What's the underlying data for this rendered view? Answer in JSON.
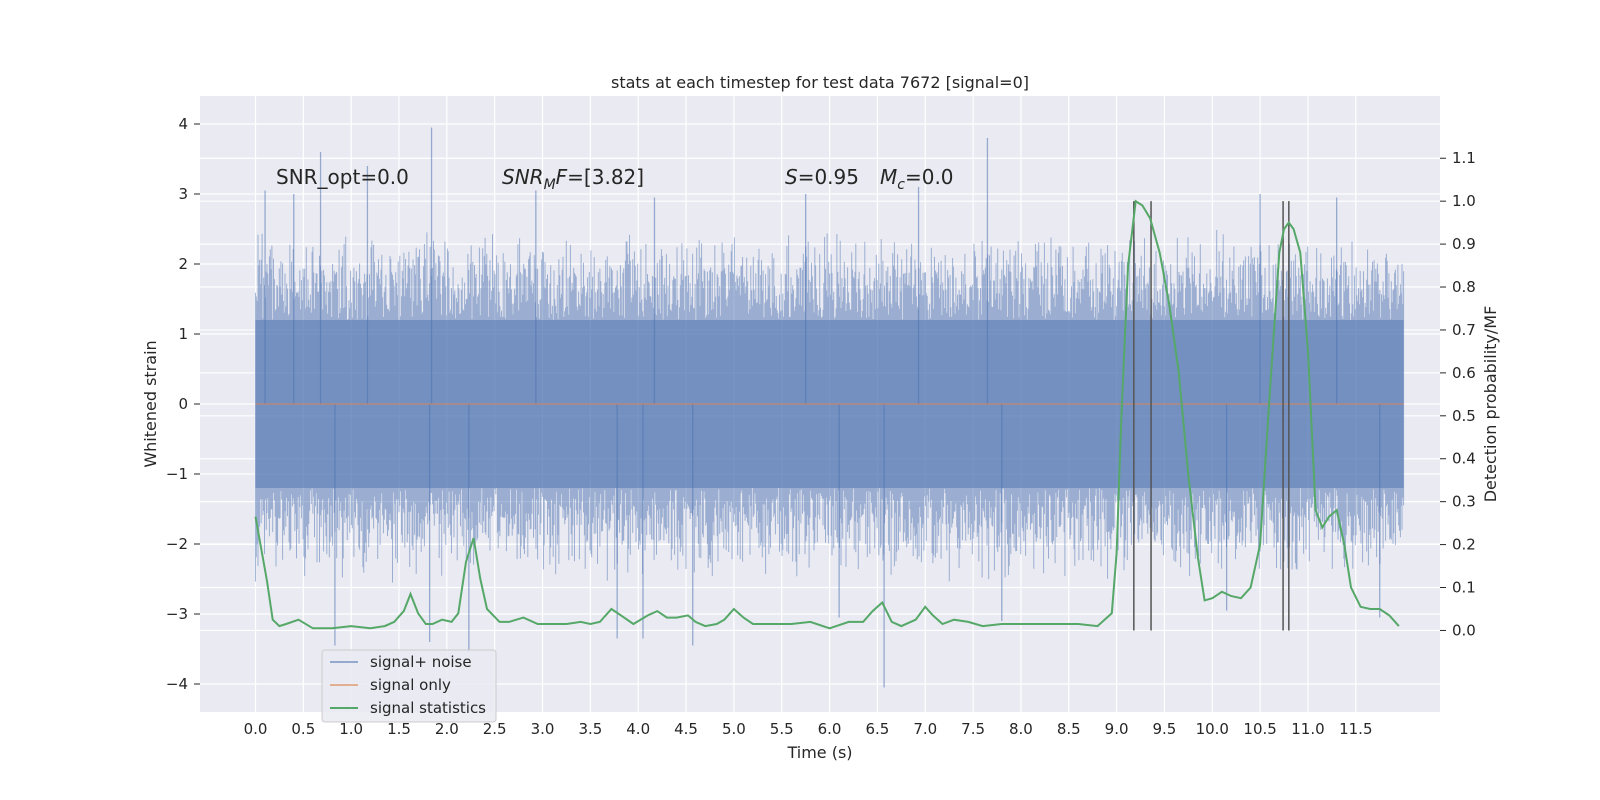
{
  "chart_data": {
    "type": "line",
    "title": "stats at each timestep for test data 7672 [signal=0]",
    "xlabel": "Time (s)",
    "ylabel": "Whitened strain",
    "y2label": "Detection probability/MF",
    "xlim": [
      -0.58,
      12.38
    ],
    "ylim": [
      -4.4,
      4.4
    ],
    "y2lim": [
      -0.19,
      1.245
    ],
    "x_ticks": [
      0.0,
      0.5,
      1.0,
      1.5,
      2.0,
      2.5,
      3.0,
      3.5,
      4.0,
      4.5,
      5.0,
      5.5,
      6.0,
      6.5,
      7.0,
      7.5,
      8.0,
      8.5,
      9.0,
      9.5,
      10.0,
      10.5,
      11.0,
      11.5
    ],
    "x_tick_labels": [
      "0.0",
      "0.5",
      "1.0",
      "1.5",
      "2.0",
      "2.5",
      "3.0",
      "3.5",
      "4.0",
      "4.5",
      "5.0",
      "5.5",
      "6.0",
      "6.5",
      "7.0",
      "7.5",
      "8.0",
      "8.5",
      "9.0",
      "9.5",
      "10.0",
      "10.5",
      "11.0",
      "11.5"
    ],
    "y_ticks": [
      4,
      3,
      2,
      1,
      0,
      -1,
      -2,
      -3,
      -4
    ],
    "y_tick_labels": [
      "4",
      "3",
      "2",
      "1",
      "0",
      "−1",
      "−2",
      "−3",
      "−4"
    ],
    "y2_ticks": [
      1.1,
      1.0,
      0.9,
      0.8,
      0.7,
      0.6,
      0.5,
      0.4,
      0.3,
      0.2,
      0.1,
      0.0
    ],
    "y2_tick_labels": [
      "1.1",
      "1.0",
      "0.9",
      "0.8",
      "0.7",
      "0.6",
      "0.5",
      "0.4",
      "0.3",
      "0.2",
      "0.1",
      "0.0"
    ],
    "grid": true,
    "legend_position": "lower-left",
    "colors": {
      "background": "#eaeaf2",
      "grid": "#ffffff",
      "noise": "#4c72b0",
      "signal_only": "#dd8452",
      "statistics": "#55a868",
      "markers": "#555555"
    },
    "annotations": {
      "snr_opt": "SNR_opt=0.0",
      "snr_mf_sym": "SNR",
      "snr_mf_sub": "M",
      "snr_mf_f": "F",
      "snr_mf_val": "=[3.82]",
      "s_sym": "S",
      "s_val": "=0.95",
      "mc_sym": "M",
      "mc_sub": "c",
      "mc_val": "=0.0"
    },
    "series": [
      {
        "name": "signal+ noise",
        "kind": "noise_envelope",
        "x_range": [
          0.0,
          12.0
        ],
        "typical_top": 1.9,
        "typical_bottom": -1.9,
        "spikes": [
          {
            "x": 0.1,
            "y": 3.05
          },
          {
            "x": 0.4,
            "y": 3.0
          },
          {
            "x": 0.68,
            "y": 3.6
          },
          {
            "x": 1.17,
            "y": 3.4
          },
          {
            "x": 1.84,
            "y": 3.95
          },
          {
            "x": 2.93,
            "y": 3.05
          },
          {
            "x": 4.17,
            "y": 2.95
          },
          {
            "x": 5.75,
            "y": 3.0
          },
          {
            "x": 6.93,
            "y": 3.1
          },
          {
            "x": 7.65,
            "y": 3.8
          },
          {
            "x": 10.5,
            "y": 3.0
          },
          {
            "x": 11.3,
            "y": 2.95
          },
          {
            "x": 0.83,
            "y": -3.45
          },
          {
            "x": 1.82,
            "y": -3.4
          },
          {
            "x": 2.23,
            "y": -3.55
          },
          {
            "x": 3.78,
            "y": -3.35
          },
          {
            "x": 4.05,
            "y": -3.35
          },
          {
            "x": 4.57,
            "y": -3.45
          },
          {
            "x": 6.57,
            "y": -4.05
          },
          {
            "x": 6.1,
            "y": -3.05
          },
          {
            "x": 7.8,
            "y": -3.1
          },
          {
            "x": 10.15,
            "y": -2.95
          },
          {
            "x": 11.75,
            "y": -3.05
          }
        ]
      },
      {
        "name": "signal only",
        "x": [
          0.0,
          12.0
        ],
        "y": [
          0.0,
          0.0
        ]
      },
      {
        "name": "signal statistics",
        "axis": "right",
        "x": [
          0.0,
          0.12,
          0.18,
          0.25,
          0.32,
          0.45,
          0.6,
          0.8,
          1.0,
          1.2,
          1.35,
          1.45,
          1.55,
          1.62,
          1.7,
          1.78,
          1.85,
          1.95,
          2.05,
          2.12,
          2.2,
          2.28,
          2.35,
          2.42,
          2.55,
          2.65,
          2.8,
          2.95,
          3.1,
          3.25,
          3.4,
          3.5,
          3.6,
          3.72,
          3.82,
          3.95,
          4.1,
          4.2,
          4.3,
          4.4,
          4.52,
          4.6,
          4.7,
          4.82,
          4.9,
          5.0,
          5.1,
          5.2,
          5.4,
          5.6,
          5.8,
          6.0,
          6.2,
          6.35,
          6.45,
          6.55,
          6.65,
          6.75,
          6.9,
          7.0,
          7.08,
          7.18,
          7.3,
          7.45,
          7.6,
          7.8,
          8.0,
          8.2,
          8.4,
          8.6,
          8.8,
          8.95,
          9.0,
          9.05,
          9.12,
          9.2,
          9.27,
          9.35,
          9.45,
          9.55,
          9.65,
          9.75,
          9.85,
          9.92,
          10.0,
          10.1,
          10.2,
          10.3,
          10.4,
          10.5,
          10.6,
          10.7,
          10.75,
          10.8,
          10.85,
          10.92,
          11.0,
          11.08,
          11.15,
          11.22,
          11.3,
          11.38,
          11.45,
          11.55,
          11.65,
          11.75,
          11.85,
          11.95
        ],
        "y": [
          0.265,
          0.115,
          0.025,
          0.01,
          0.015,
          0.025,
          0.005,
          0.005,
          0.01,
          0.005,
          0.01,
          0.02,
          0.045,
          0.085,
          0.04,
          0.015,
          0.015,
          0.025,
          0.02,
          0.04,
          0.16,
          0.215,
          0.12,
          0.05,
          0.02,
          0.02,
          0.03,
          0.015,
          0.015,
          0.015,
          0.02,
          0.015,
          0.02,
          0.05,
          0.035,
          0.015,
          0.035,
          0.045,
          0.03,
          0.03,
          0.035,
          0.02,
          0.01,
          0.015,
          0.025,
          0.05,
          0.03,
          0.015,
          0.015,
          0.015,
          0.02,
          0.005,
          0.02,
          0.02,
          0.045,
          0.065,
          0.02,
          0.01,
          0.025,
          0.055,
          0.035,
          0.015,
          0.025,
          0.02,
          0.01,
          0.015,
          0.015,
          0.015,
          0.015,
          0.015,
          0.01,
          0.04,
          0.18,
          0.5,
          0.85,
          1.0,
          0.99,
          0.96,
          0.88,
          0.76,
          0.6,
          0.36,
          0.17,
          0.07,
          0.075,
          0.09,
          0.08,
          0.075,
          0.1,
          0.2,
          0.55,
          0.88,
          0.935,
          0.95,
          0.935,
          0.88,
          0.65,
          0.28,
          0.24,
          0.265,
          0.28,
          0.2,
          0.1,
          0.055,
          0.05,
          0.05,
          0.035,
          0.01
        ]
      }
    ],
    "marker_lines": [
      9.18,
      9.36,
      10.74,
      10.8
    ]
  }
}
